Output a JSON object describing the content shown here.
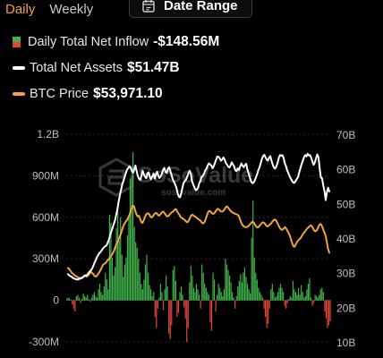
{
  "tabs": [
    {
      "label": "Daily",
      "active": true
    },
    {
      "label": "Weekly",
      "active": false
    }
  ],
  "date_range": {
    "label": "Date Range",
    "icon": "calendar-icon"
  },
  "legend": [
    {
      "label": "Daily Total Net Inflow",
      "value": "-$148.56M",
      "colors": [
        "#3fb14a",
        "#e0473a"
      ]
    },
    {
      "label": "Total Net Assets",
      "value": "$51.47B",
      "color": "#ffffff"
    },
    {
      "label": "BTC Price",
      "value": "$53,971.10",
      "color": "#f0a340"
    }
  ],
  "watermark": {
    "brand": "SoSoValue",
    "domain": "sosovalue.com"
  },
  "chart_data": {
    "type": "bar+line",
    "left_axis": {
      "ticks": [
        "1.2B",
        "900M",
        "600M",
        "300M",
        "0",
        "-300M"
      ],
      "range": [
        -300000000,
        1200000000
      ]
    },
    "right_axis": {
      "ticks": [
        "70B",
        "60B",
        "50B",
        "40B",
        "30B",
        "20B",
        "10B"
      ],
      "range": [
        10000000000,
        70000000000
      ]
    },
    "bar_colors": {
      "positive": "#3fb14a",
      "negative": "#e0473a"
    },
    "series": [
      {
        "name": "Daily Total Net Inflow",
        "kind": "bar",
        "axis": "left",
        "values": [
          10,
          20,
          15,
          5,
          -30,
          -60,
          -80,
          30,
          40,
          20,
          -20,
          10,
          50,
          30,
          20,
          40,
          10,
          -10,
          20,
          40,
          60,
          30,
          20,
          80,
          120,
          60,
          40,
          100,
          200,
          150,
          80,
          620,
          560,
          310,
          180,
          240,
          520,
          650,
          430,
          600,
          330,
          170,
          260,
          310,
          470,
          600,
          880,
          900,
          1070,
          530,
          420,
          380,
          300,
          200,
          120,
          80,
          150,
          260,
          330,
          200,
          110,
          80,
          30,
          60,
          -120,
          -200,
          -60,
          20,
          120,
          60,
          -70,
          80,
          180,
          100,
          -240,
          -280,
          -180,
          220,
          250,
          140,
          -120,
          -90,
          60,
          100,
          40,
          -50,
          -130,
          -300,
          -200,
          130,
          250,
          180,
          90,
          60,
          120,
          80,
          40,
          -60,
          260,
          200,
          120,
          90,
          60,
          40,
          -160,
          -220,
          200,
          150,
          -80,
          40,
          120,
          90,
          60,
          30,
          80,
          300,
          260,
          220,
          180,
          130,
          60,
          20,
          -60,
          30,
          100,
          140,
          190,
          130,
          200,
          240,
          170,
          120,
          80,
          50,
          450,
          720,
          310,
          200,
          150,
          90,
          60,
          40,
          20,
          -60,
          -120,
          -200,
          -170,
          -60,
          80,
          120,
          60,
          20,
          30,
          60,
          90,
          120,
          90,
          60,
          -40,
          -60,
          -20,
          10,
          30,
          20,
          140,
          80,
          60,
          40,
          90,
          40,
          110,
          60,
          20,
          30,
          80,
          120,
          160,
          20,
          -40,
          -20,
          40,
          30,
          20,
          40,
          80,
          90,
          60,
          -80,
          -130,
          -200,
          -180,
          -150
        ]
      },
      {
        "name": "Total Net Assets",
        "kind": "line",
        "axis": "right",
        "color": "#ffffff",
        "values": [
          27.5,
          27.2,
          26.9,
          26.8,
          26.4,
          26.3,
          26.1,
          26.0,
          25.9,
          26.1,
          26.2,
          26.3,
          26.5,
          26.8,
          27.2,
          27.0,
          27.4,
          27.8,
          28.3,
          28.6,
          29.1,
          29.9,
          30.8,
          31.5,
          32.4,
          33.0,
          33.6,
          33.9,
          34.4,
          34.9,
          35.3,
          35.6,
          35.8,
          36.6,
          37.6,
          38.7,
          39.9,
          40.9,
          42.0,
          43.0,
          44.6,
          46.2,
          48.4,
          50.2,
          51.8,
          53.4,
          54.4,
          55.6,
          56.7,
          57.7,
          58.1,
          58.7,
          58.3,
          57.4,
          56.8,
          57.7,
          58.9,
          57.3,
          55.8,
          55.0,
          54.7,
          56.0,
          57.4,
          56.3,
          55.6,
          55.2,
          56.7,
          56.9,
          55.6,
          54.9,
          55.7,
          56.6,
          55.1,
          56.3,
          57.1,
          55.9,
          55.3,
          55.8,
          56.5,
          57.7,
          58.2,
          57.0,
          56.7,
          58.0,
          58.4,
          57.3,
          56.1,
          54.9,
          54.2,
          53.4,
          52.5,
          50.9,
          49.9,
          49.7,
          50.8,
          52.5,
          53.9,
          54.4,
          54.8,
          55.7,
          56.7,
          57.4,
          56.4,
          54.4,
          53.4,
          52.6,
          51.8,
          51.9,
          52.5,
          53.8,
          54.5,
          55.6,
          55.9,
          56.6,
          57.5,
          58.0,
          58.9,
          59.5,
          59.2,
          58.9,
          58.1,
          58.7,
          59.6,
          60.6,
          61.5,
          61.4,
          61.0,
          60.3,
          60.6,
          61.2,
          60.7,
          59.7,
          59.2,
          58.6,
          58.3,
          58.9,
          59.8,
          59.2,
          58.6,
          57.5,
          57.3,
          58.1,
          57.6,
          58.7,
          59.5,
          58.8,
          58.4,
          59.1,
          59.4,
          57.7,
          56.6,
          55.4,
          54.4,
          53.8,
          53.9,
          54.5,
          55.4,
          56.3,
          57.5,
          58.3,
          59.5,
          60.8,
          61.6,
          62.0,
          61.3,
          60.6,
          60.3,
          61.2,
          61.6,
          60.3,
          59.1,
          58.3,
          58.0,
          58.6,
          59.6,
          61.0,
          61.9,
          61.7,
          61.9,
          61.1,
          59.6,
          58.7,
          57.5,
          56.7,
          55.8,
          55.1,
          54.5,
          54.0,
          53.9,
          54.4,
          55.0,
          55.5,
          56.9,
          58.1,
          59.3,
          60.3,
          61.3,
          61.9,
          61.5,
          62.3,
          61.8,
          61.9,
          61.1,
          60.0,
          59.1,
          59.8,
          61.0,
          62.1,
          61.3,
          58.0,
          55.4,
          55.2,
          53.1,
          51.5,
          48.9,
          51.1,
          52.5,
          51.4
        ]
      },
      {
        "name": "BTC Price",
        "kind": "line",
        "axis": "right",
        "color": "#f0a340",
        "values": [
          29.3,
          29.0,
          28.5,
          28.0,
          27.7,
          27.4,
          27.1,
          26.9,
          26.7,
          26.5,
          26.4,
          26.4,
          26.5,
          26.7,
          26.9,
          27.0,
          26.8,
          27.0,
          27.4,
          27.8,
          28.1,
          27.8,
          27.4,
          26.9,
          26.8,
          27.1,
          27.6,
          28.1,
          28.7,
          29.4,
          30.1,
          30.5,
          30.6,
          31.0,
          31.5,
          31.8,
          32.2,
          32.7,
          33.3,
          33.8,
          34.6,
          35.6,
          36.4,
          37.1,
          37.9,
          38.7,
          39.7,
          40.8,
          41.7,
          42.3,
          42.8,
          43.3,
          43.9,
          44.7,
          45.8,
          46.8,
          47.3,
          47.0,
          45.7,
          44.7,
          44.2,
          44.4,
          43.6,
          42.6,
          42.3,
          42.9,
          43.8,
          44.6,
          45.0,
          45.1,
          44.8,
          44.1,
          43.9,
          44.2,
          44.7,
          45.1,
          45.2,
          44.8,
          44.4,
          44.6,
          45.0,
          45.4,
          45.6,
          45.2,
          44.7,
          44.3,
          44.2,
          44.5,
          44.9,
          45.3,
          45.5,
          45.8,
          46.2,
          46.3,
          45.6,
          45.1,
          44.6,
          44.0,
          43.7,
          43.5,
          43.3,
          43.0,
          42.6,
          42.5,
          43.0,
          43.7,
          44.4,
          44.7,
          44.5,
          44.2,
          44.0,
          43.7,
          43.5,
          43.2,
          43.0,
          42.5,
          42.2,
          42.3,
          42.9,
          43.8,
          44.9,
          45.6,
          45.8,
          45.5,
          45.1,
          44.9,
          45.1,
          45.6,
          46.1,
          46.4,
          46.2,
          45.8,
          45.6,
          45.6,
          45.9,
          46.4,
          46.9,
          47.1,
          46.7,
          46.2,
          45.8,
          45.5,
          45.3,
          45.1,
          44.9,
          44.8,
          44.7,
          44.3,
          43.5,
          42.5,
          41.8,
          41.4,
          41.2,
          41.1,
          41.1,
          41.3,
          41.6,
          42.0,
          42.4,
          42.7,
          42.4,
          41.8,
          41.3,
          41.0,
          41.1,
          41.5,
          41.9,
          42.3,
          42.5,
          42.3,
          41.9,
          41.4,
          41.3,
          41.6,
          41.9,
          42.2,
          42.7,
          43.1,
          43.3,
          43.1,
          42.5,
          41.8,
          41.1,
          40.6,
          40.3,
          40.4,
          40.8,
          41.1,
          40.6,
          40.0,
          39.4,
          38.6,
          37.6,
          36.5,
          35.6,
          35.4,
          36.0,
          36.7,
          37.2,
          37.5,
          37.8,
          38.3,
          38.9,
          39.4,
          39.8,
          40.3,
          40.7,
          41.0,
          41.3,
          41.6,
          41.4,
          40.7,
          40.1,
          39.9,
          40.1,
          40.7,
          41.5,
          42.0,
          41.9,
          41.1,
          40.2,
          39.4,
          38.3,
          36.5,
          34.7,
          33.7
        ]
      }
    ]
  }
}
